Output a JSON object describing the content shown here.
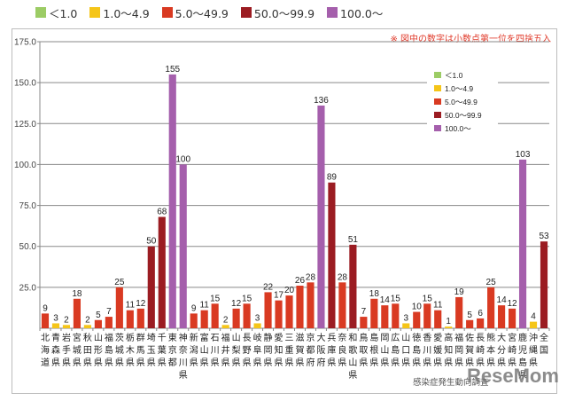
{
  "top_legend": [
    {
      "label": "＜1.0",
      "color": "#9ccc65"
    },
    {
      "label": "1.0～4.9",
      "color": "#f5c518"
    },
    {
      "label": "5.0～49.9",
      "color": "#d93a22"
    },
    {
      "label": "50.0～99.9",
      "color": "#9b1c22"
    },
    {
      "label": "100.0～",
      "color": "#a55fac"
    }
  ],
  "note": "※ 図中の数字は小数点第一位を四捨五入",
  "source": "感染症発生動向調査",
  "watermark": "ReseMom",
  "chart_data": {
    "type": "bar",
    "title": "",
    "xlabel": "",
    "ylabel": "",
    "ylim": [
      0,
      175
    ],
    "yticks": [
      "25.0",
      "50.0",
      "75.0",
      "100.0",
      "125.0",
      "150.0",
      "175.0"
    ],
    "grid": true,
    "legend_placement": "top-right",
    "categories": [
      "北海道",
      "青森県",
      "岩手県",
      "宮城県",
      "秋田県",
      "山形県",
      "福島県",
      "茨城県",
      "栃木県",
      "群馬県",
      "埼玉県",
      "千葉県",
      "東京都",
      "神奈川県",
      "新潟県",
      "富山県",
      "石川県",
      "福井県",
      "山梨県",
      "長野県",
      "岐阜県",
      "静岡県",
      "愛知県",
      "三重県",
      "滋賀県",
      "京都府",
      "大阪府",
      "兵庫県",
      "奈良県",
      "和歌山県",
      "鳥取県",
      "島根県",
      "岡山県",
      "広島県",
      "山口県",
      "徳島県",
      "香川県",
      "愛媛県",
      "高知県",
      "福岡県",
      "佐賀県",
      "長崎県",
      "熊本県",
      "大分県",
      "宮崎県",
      "鹿児島県",
      "沖縄県",
      "全国"
    ],
    "values": [
      9,
      3,
      2,
      18,
      2,
      5,
      7,
      25,
      11,
      12,
      50,
      68,
      155,
      100,
      9,
      11,
      15,
      2,
      12,
      15,
      3,
      22,
      17,
      20,
      26,
      28,
      136,
      89,
      28,
      51,
      7,
      18,
      14,
      15,
      3,
      10,
      15,
      11,
      1,
      19,
      5,
      6,
      25,
      14,
      12,
      103,
      4,
      53
    ],
    "legend": [
      {
        "label": "＜1.0",
        "color": "#9ccc65"
      },
      {
        "label": "1.0～4.9",
        "color": "#f5c518"
      },
      {
        "label": "5.0～49.9",
        "color": "#d93a22"
      },
      {
        "label": "50.0～99.9",
        "color": "#9b1c22"
      },
      {
        "label": "100.0～",
        "color": "#a55fac"
      }
    ]
  }
}
